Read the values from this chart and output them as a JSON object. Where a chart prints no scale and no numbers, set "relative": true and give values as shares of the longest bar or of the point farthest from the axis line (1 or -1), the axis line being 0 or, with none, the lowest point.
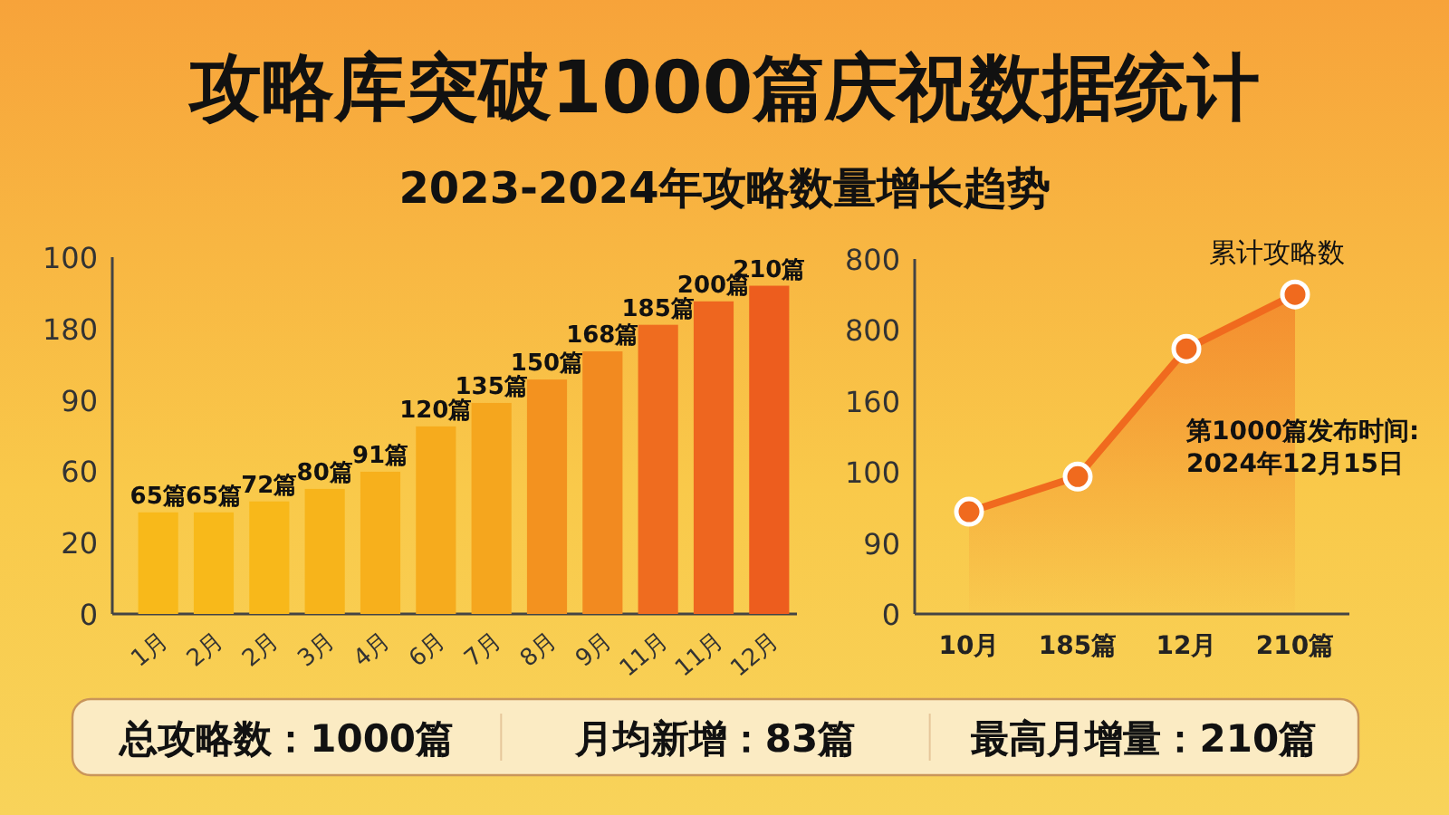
{
  "chart_data": [
    {
      "type": "bar",
      "title": "攻略库突破1000篇庆祝数据统计",
      "subtitle": "2023-2024年攻略数量增长趋势",
      "categories": [
        "1月",
        "2月",
        "2月",
        "3月",
        "4月",
        "6月",
        "7月",
        "8月",
        "9月",
        "11月",
        "11月",
        "12月"
      ],
      "values": [
        65,
        65,
        72,
        80,
        91,
        120,
        135,
        150,
        168,
        185,
        200,
        210
      ],
      "value_labels": [
        "65篇",
        "65篇",
        "72篇",
        "80篇",
        "91篇",
        "120篇",
        "135篇",
        "150篇",
        "168篇",
        "185篇",
        "200篇",
        "210篇"
      ],
      "colors": [
        "#f8b91a",
        "#f8b91a",
        "#f8b81a",
        "#f7b41b",
        "#f7b01c",
        "#f6ab1d",
        "#f5a61e",
        "#f3921f",
        "#f28a20",
        "#ef6c1f",
        "#ee661f",
        "#ed5d1e"
      ],
      "annotations": [
        "0",
        "20",
        "60",
        "90",
        "180",
        "100"
      ]
    },
    {
      "type": "area",
      "categories": [
        "10月",
        "185篇",
        "12月",
        "210篇"
      ],
      "relative": true,
      "series": [
        {
          "name": "累计攻略数",
          "color": "#f06a1e",
          "values": [
            0.32,
            0.43,
            0.83,
            1
          ]
        }
      ],
      "marker": "circle",
      "annotations": [
        "0",
        "90",
        "100",
        "160",
        "800",
        "800",
        {
          "text": "第1000篇发布时间:\n2024年12月15日",
          "x": "12月",
          "y": 0.83
        }
      ]
    },
    {
      "type": "other",
      "annotations": [
        "总攻略数：1000篇",
        "月均新增：83篇",
        "最高月增量：210篇"
      ]
    }
  ]
}
